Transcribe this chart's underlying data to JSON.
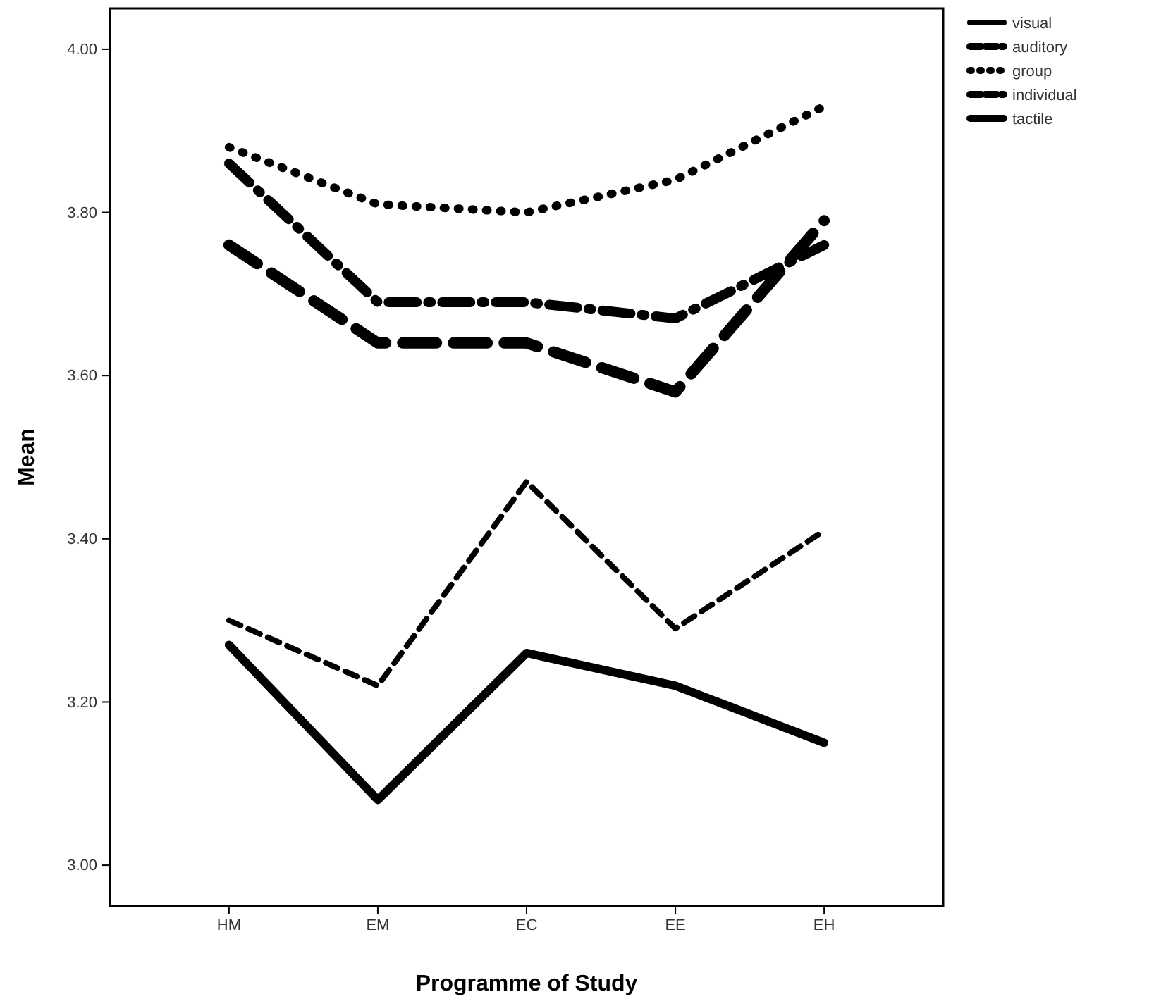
{
  "chart_data": {
    "type": "line",
    "xlabel": "Programme of Study",
    "ylabel": "Mean",
    "categories": [
      "HM",
      "EM",
      "EC",
      "EE",
      "EH"
    ],
    "ylim": [
      2.95,
      4.05
    ],
    "yticks": [
      {
        "value": 3,
        "label": "3.00"
      },
      {
        "value": 3.2,
        "label": "3.20"
      },
      {
        "value": 3.4,
        "label": "3.40"
      },
      {
        "value": 3.6,
        "label": "3.60"
      },
      {
        "value": 3.8,
        "label": "3.80"
      },
      {
        "value": 4,
        "label": "4.00"
      }
    ],
    "grid": false,
    "legend": "top right",
    "marker": "none",
    "series": [
      {
        "name": "visual",
        "color": "#000000",
        "line_style": "dashed",
        "values": [
          3.3,
          3.22,
          3.47,
          3.29,
          3.41
        ]
      },
      {
        "name": "auditory",
        "color": "#000000",
        "line_style": "dashed",
        "values": [
          3.76,
          3.64,
          3.64,
          3.58,
          3.79
        ]
      },
      {
        "name": "group",
        "color": "#000000",
        "line_style": "dotted",
        "values": [
          3.88,
          3.81,
          3.8,
          3.84,
          3.93
        ]
      },
      {
        "name": "individual",
        "color": "#000000",
        "line_style": "dashed",
        "values": [
          3.86,
          3.69,
          3.69,
          3.67,
          3.76
        ]
      },
      {
        "name": "tactile",
        "color": "#000000",
        "line_style": "solid",
        "values": [
          3.27,
          3.08,
          3.26,
          3.22,
          3.15
        ]
      }
    ]
  }
}
